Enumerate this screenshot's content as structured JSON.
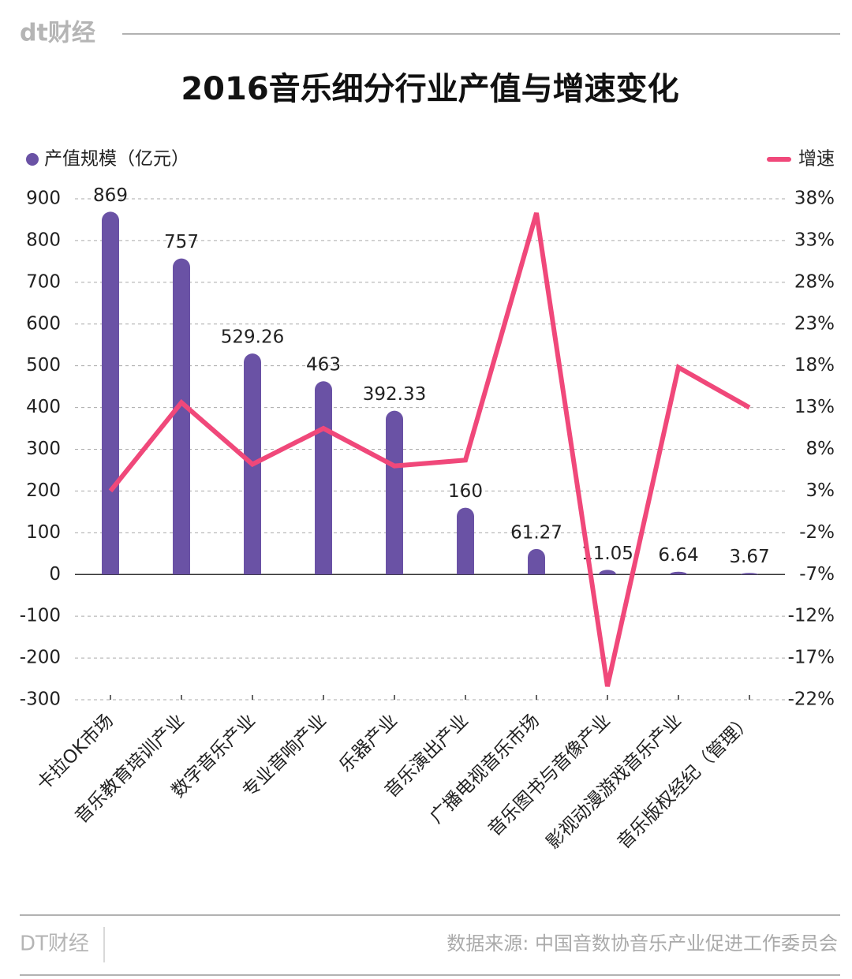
{
  "logo": "dt财经",
  "chart_data": {
    "type": "combo",
    "title": "2016音乐细分行业产值与增速变化",
    "categories": [
      "卡拉OK市场",
      "音乐教育培训产业",
      "数字音乐产业",
      "专业音响产业",
      "乐器产业",
      "音乐演出产业",
      "广播电视音乐市场",
      "音乐图书与音像产业",
      "影视动漫游戏音乐产业",
      "音乐版权经纪（管理）"
    ],
    "series": [
      {
        "name": "产值规模（亿元）",
        "type": "bar",
        "color": "#6a52a5",
        "values": [
          869,
          757,
          529.26,
          463,
          392.33,
          160,
          61.27,
          11.05,
          6.64,
          3.67
        ]
      },
      {
        "name": "增速",
        "type": "line",
        "axis": "y2",
        "color": "#f0487a",
        "values": [
          3,
          13.6,
          6.2,
          10.5,
          6,
          6.7,
          36.3,
          -20.4,
          17.8,
          13
        ]
      }
    ],
    "ylim": [
      -300,
      900
    ],
    "yticks": [
      -300,
      -200,
      -100,
      0,
      100,
      200,
      300,
      400,
      500,
      600,
      700,
      800,
      900
    ],
    "y2lim": [
      -22,
      38
    ],
    "y2ticks": [
      {
        "value": -22,
        "label": "-22%"
      },
      {
        "value": -17,
        "label": "-17%"
      },
      {
        "value": -12,
        "label": "-12%"
      },
      {
        "value": -7,
        "label": "-7%"
      },
      {
        "value": -2,
        "label": "-2%"
      },
      {
        "value": 3,
        "label": "3%"
      },
      {
        "value": 8,
        "label": "8%"
      },
      {
        "value": 13,
        "label": "13%"
      },
      {
        "value": 18,
        "label": "18%"
      },
      {
        "value": 23,
        "label": "23%"
      },
      {
        "value": 28,
        "label": "28%"
      },
      {
        "value": 33,
        "label": "33%"
      },
      {
        "value": 38,
        "label": "38%"
      }
    ],
    "grid": true
  },
  "footer": {
    "brand": "DT财经",
    "source": "数据来源: 中国音数协音乐产业促进工作委员会"
  }
}
